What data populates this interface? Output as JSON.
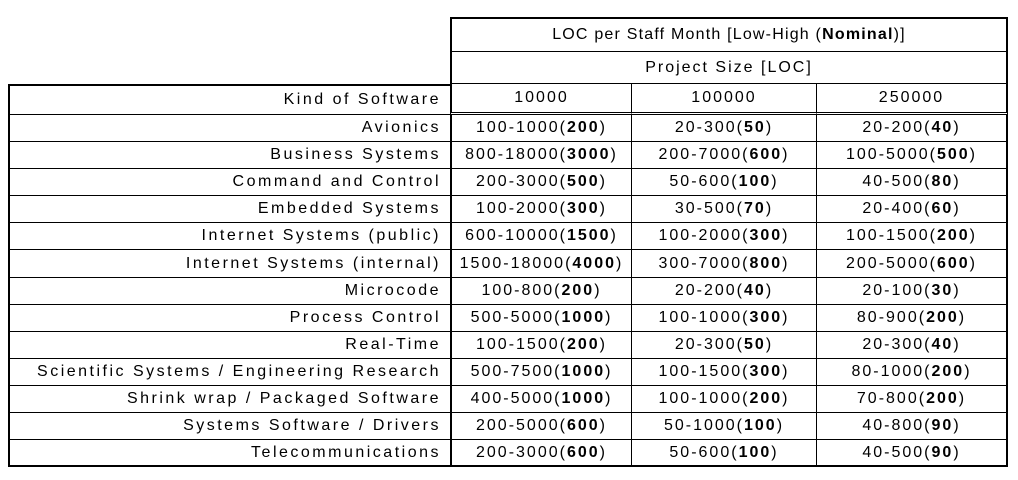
{
  "table": {
    "title_pre": "LOC per Staff Month [Low-High (",
    "title_bold": "Nominal",
    "title_post": ")]",
    "subtitle": "Project Size [LOC]",
    "row_header": "Kind of Software",
    "size_columns": [
      "10000",
      "100000",
      "250000"
    ],
    "rows": [
      {
        "label": "Avionics",
        "cells": [
          {
            "pre": "100-1000(",
            "bold": "200",
            "post": ")"
          },
          {
            "pre": "20-300(",
            "bold": "50",
            "post": ")"
          },
          {
            "pre": "20-200(",
            "bold": "40",
            "post": ")"
          }
        ]
      },
      {
        "label": "Business Systems",
        "cells": [
          {
            "pre": "800-18000(",
            "bold": "3000",
            "post": ")"
          },
          {
            "pre": "200-7000(",
            "bold": "600",
            "post": ")"
          },
          {
            "pre": "100-5000(",
            "bold": "500",
            "post": ")"
          }
        ]
      },
      {
        "label": "Command and Control",
        "cells": [
          {
            "pre": "200-3000(",
            "bold": "500",
            "post": ")"
          },
          {
            "pre": "50-600(",
            "bold": "100",
            "post": ")"
          },
          {
            "pre": "40-500(",
            "bold": "80",
            "post": ")"
          }
        ]
      },
      {
        "label": "Embedded Systems",
        "cells": [
          {
            "pre": "100-2000(",
            "bold": "300",
            "post": ")"
          },
          {
            "pre": "30-500(",
            "bold": "70",
            "post": ")"
          },
          {
            "pre": "20-400(",
            "bold": "60",
            "post": ")"
          }
        ]
      },
      {
        "label": "Internet Systems (public)",
        "cells": [
          {
            "pre": "600-10000(",
            "bold": "1500",
            "post": ")"
          },
          {
            "pre": "100-2000(",
            "bold": "300",
            "post": ")"
          },
          {
            "pre": "100-1500(",
            "bold": "200",
            "post": ")"
          }
        ]
      },
      {
        "label": "Internet Systems (internal)",
        "cells": [
          {
            "pre": "1500-18000(",
            "bold": "4000",
            "post": ")"
          },
          {
            "pre": "300-7000(",
            "bold": "800",
            "post": ")"
          },
          {
            "pre": "200-5000(",
            "bold": "600",
            "post": ")"
          }
        ]
      },
      {
        "label": "Microcode",
        "cells": [
          {
            "pre": "100-800(",
            "bold": "200",
            "post": ")"
          },
          {
            "pre": "20-200(",
            "bold": "40",
            "post": ")"
          },
          {
            "pre": "20-100(",
            "bold": "30",
            "post": ")"
          }
        ]
      },
      {
        "label": "Process Control",
        "cells": [
          {
            "pre": "500-5000(",
            "bold": "1000",
            "post": ")"
          },
          {
            "pre": "100-1000(",
            "bold": "300",
            "post": ")"
          },
          {
            "pre": "80-900(",
            "bold": "200",
            "post": ")"
          }
        ]
      },
      {
        "label": "Real-Time",
        "cells": [
          {
            "pre": "100-1500(",
            "bold": "200",
            "post": ")"
          },
          {
            "pre": "20-300(",
            "bold": "50",
            "post": ")"
          },
          {
            "pre": "20-300(",
            "bold": "40",
            "post": ")"
          }
        ]
      },
      {
        "label": "Scientific Systems / Engineering Research",
        "cells": [
          {
            "pre": "500-7500(",
            "bold": "1000",
            "post": ")"
          },
          {
            "pre": "100-1500(",
            "bold": "300",
            "post": ")"
          },
          {
            "pre": "80-1000(",
            "bold": "200",
            "post": ")"
          }
        ]
      },
      {
        "label": "Shrink wrap / Packaged Software",
        "cells": [
          {
            "pre": "400-5000(",
            "bold": "1000",
            "post": ")"
          },
          {
            "pre": "100-1000(",
            "bold": "200",
            "post": ")"
          },
          {
            "pre": "70-800(",
            "bold": "200",
            "post": ")"
          }
        ]
      },
      {
        "label": "Systems Software / Drivers",
        "cells": [
          {
            "pre": "200-5000(",
            "bold": "600",
            "post": ")"
          },
          {
            "pre": "50-1000(",
            "bold": "100",
            "post": ")"
          },
          {
            "pre": "40-800(",
            "bold": "90",
            "post": ")"
          }
        ]
      },
      {
        "label": "Telecommunications",
        "cells": [
          {
            "pre": "200-3000(",
            "bold": "600",
            "post": ")"
          },
          {
            "pre": "50-600(",
            "bold": "100",
            "post": ")"
          },
          {
            "pre": "40-500(",
            "bold": "90",
            "post": ")"
          }
        ]
      }
    ]
  }
}
